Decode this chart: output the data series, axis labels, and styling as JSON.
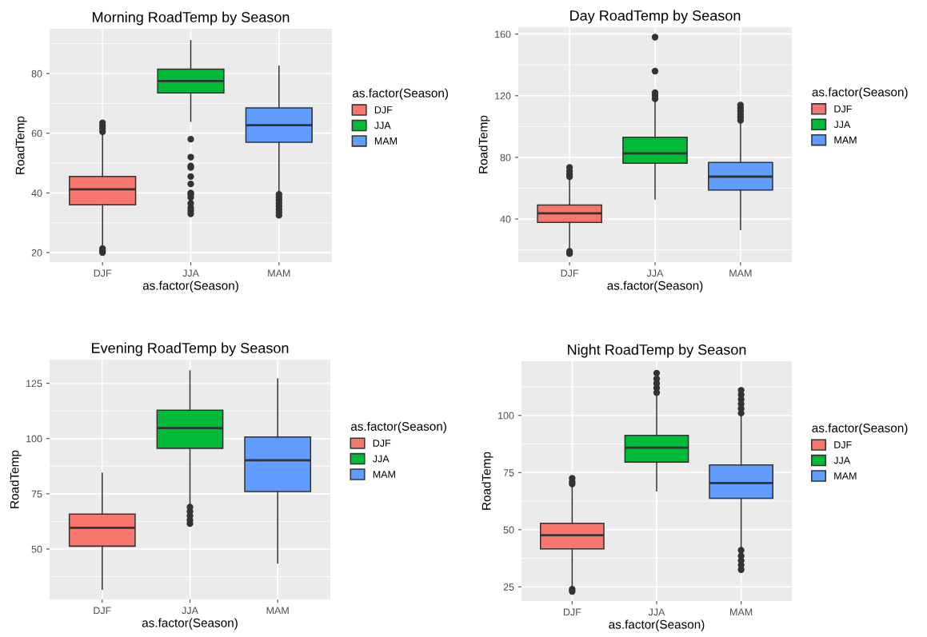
{
  "chart_data": [
    {
      "type": "box",
      "title": "Morning RoadTemp by Season",
      "xlabel": "as.factor(Season)",
      "ylabel": "RoadTemp",
      "legend_title": "as.factor(Season)",
      "categories": [
        "DJF",
        "JJA",
        "MAM"
      ],
      "ylim": [
        16.8,
        95
      ],
      "yticks": [
        20,
        40,
        60,
        80
      ],
      "grid": true,
      "legend": "right",
      "series": [
        {
          "name": "DJF",
          "color": "#f8766d",
          "boxes": [
            {
              "low": 22,
              "q1": 36,
              "median": 41.2,
              "q3": 45.5,
              "high": 59.5,
              "outliers": [
                20,
                20.7,
                21.4,
                60.5,
                61.5,
                62.5,
                63.5
              ]
            },
            null,
            null
          ]
        },
        {
          "name": "JJA",
          "color": "#00ba38",
          "boxes": [
            null,
            {
              "low": 64,
              "q1": 73.5,
              "median": 77.5,
              "q3": 81.5,
              "high": 91,
              "outliers": [
                33,
                34,
                35,
                36.5,
                38.5,
                39.5,
                40,
                43,
                45.5,
                48.5,
                49,
                52,
                58
              ]
            },
            null
          ]
        },
        {
          "name": "MAM",
          "color": "#619cff",
          "boxes": [
            null,
            null,
            {
              "low": 40,
              "q1": 57,
              "median": 62.7,
              "q3": 68.5,
              "high": 82.5,
              "outliers": [
                32.5,
                33.5,
                34.5,
                35.5,
                36.5,
                37.5,
                38.5,
                39.5
              ]
            }
          ]
        }
      ]
    },
    {
      "type": "box",
      "title": "Day RoadTemp by Season",
      "xlabel": "as.factor(Season)",
      "ylabel": "RoadTemp",
      "legend_title": "as.factor(Season)",
      "categories": [
        "DJF",
        "JJA",
        "MAM"
      ],
      "ylim": [
        12,
        164.5
      ],
      "yticks": [
        40,
        80,
        120,
        160
      ],
      "grid": true,
      "legend": "right",
      "series": [
        {
          "name": "DJF",
          "color": "#f8766d",
          "boxes": [
            {
              "low": 20.5,
              "q1": 37.8,
              "median": 43.7,
              "q3": 49.1,
              "high": 66.5,
              "outliers": [
                17.5,
                19,
                67.5,
                69,
                71,
                73.5
              ]
            },
            null,
            null
          ]
        },
        {
          "name": "JJA",
          "color": "#00ba38",
          "boxes": [
            null,
            {
              "low": 53,
              "q1": 76.2,
              "median": 82.6,
              "q3": 93,
              "high": 116.6,
              "outliers": [
                118,
                120,
                122,
                136,
                158
              ]
            },
            null
          ]
        },
        {
          "name": "MAM",
          "color": "#619cff",
          "boxes": [
            null,
            null,
            {
              "low": 33.2,
              "q1": 58.8,
              "median": 67.5,
              "q3": 76.7,
              "high": 103,
              "outliers": [
                104,
                106,
                108,
                110,
                112,
                114
              ]
            }
          ]
        }
      ]
    },
    {
      "type": "box",
      "title": "Evening RoadTemp by Season",
      "xlabel": "as.factor(Season)",
      "ylabel": "RoadTemp",
      "legend_title": "as.factor(Season)",
      "categories": [
        "DJF",
        "JJA",
        "MAM"
      ],
      "ylim": [
        27.2,
        135.7
      ],
      "yticks": [
        50,
        75,
        100,
        125
      ],
      "grid": true,
      "legend": "right",
      "series": [
        {
          "name": "DJF",
          "color": "#f8766d",
          "boxes": [
            {
              "low": 31.8,
              "q1": 51.3,
              "median": 59.6,
              "q3": 65.8,
              "high": 84.3
            },
            null,
            null
          ]
        },
        {
          "name": "JJA",
          "color": "#00ba38",
          "boxes": [
            null,
            {
              "low": 70.5,
              "q1": 95.6,
              "median": 104.7,
              "q3": 112.8,
              "high": 130.6,
              "outliers": [
                61.5,
                63,
                65,
                67,
                69
              ]
            },
            null
          ]
        },
        {
          "name": "MAM",
          "color": "#619cff",
          "boxes": [
            null,
            null,
            {
              "low": 43.7,
              "q1": 76,
              "median": 90.2,
              "q3": 100.7,
              "high": 127
            }
          ]
        }
      ]
    },
    {
      "type": "box",
      "title": "Night RoadTemp by Season",
      "xlabel": "as.factor(Season)",
      "ylabel": "RoadTemp",
      "legend_title": "as.factor(Season)",
      "categories": [
        "DJF",
        "JJA",
        "MAM"
      ],
      "ylim": [
        18.8,
        123.7
      ],
      "yticks": [
        25,
        50,
        75,
        100
      ],
      "grid": true,
      "legend": "right",
      "series": [
        {
          "name": "DJF",
          "color": "#f8766d",
          "boxes": [
            {
              "low": 25.5,
              "q1": 41.6,
              "median": 47.6,
              "q3": 52.8,
              "high": 69.5,
              "outliers": [
                23,
                24,
                70,
                71,
                72.5
              ]
            },
            null,
            null
          ]
        },
        {
          "name": "JJA",
          "color": "#00ba38",
          "boxes": [
            null,
            {
              "low": 67,
              "q1": 79.6,
              "median": 85.9,
              "q3": 91.3,
              "high": 109.3,
              "outliers": [
                110,
                112,
                114,
                116,
                118.5
              ]
            },
            null
          ]
        },
        {
          "name": "MAM",
          "color": "#619cff",
          "boxes": [
            null,
            null,
            {
              "low": 41.8,
              "q1": 63.7,
              "median": 70.4,
              "q3": 78.3,
              "high": 100,
              "outliers": [
                32.5,
                34.5,
                36.5,
                38.5,
                41,
                101,
                103,
                105,
                107,
                109,
                111
              ]
            }
          ]
        }
      ]
    }
  ]
}
